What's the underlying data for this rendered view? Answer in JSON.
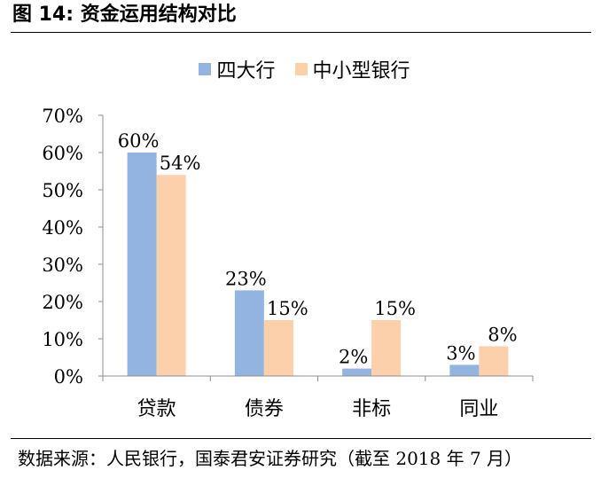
{
  "figure": {
    "title": "图 14:  资金运用结构对比",
    "source": "数据来源：人民银行，国泰君安证券研究（截至 2018 年 7 月）"
  },
  "chart_data": {
    "type": "bar",
    "title": "资金运用结构对比",
    "categories": [
      "贷款",
      "债券",
      "非标",
      "同业"
    ],
    "series": [
      {
        "name": "四大行",
        "color": "#93b4e1",
        "values": [
          60,
          23,
          2,
          3
        ],
        "labels": [
          "60%",
          "23%",
          "2%",
          "3%"
        ]
      },
      {
        "name": "中小型银行",
        "color": "#fbd0aa",
        "values": [
          54,
          15,
          15,
          8
        ],
        "labels": [
          "54%",
          "15%",
          "15%",
          "8%"
        ]
      }
    ],
    "ylim": [
      0,
      70
    ],
    "yticks": [
      0,
      10,
      20,
      30,
      40,
      50,
      60,
      70
    ],
    "ytick_labels": [
      "0%",
      "10%",
      "20%",
      "30%",
      "40%",
      "50%",
      "60%",
      "70%"
    ],
    "xlabel": "",
    "ylabel": "",
    "legend": "top-center",
    "grid": false
  }
}
